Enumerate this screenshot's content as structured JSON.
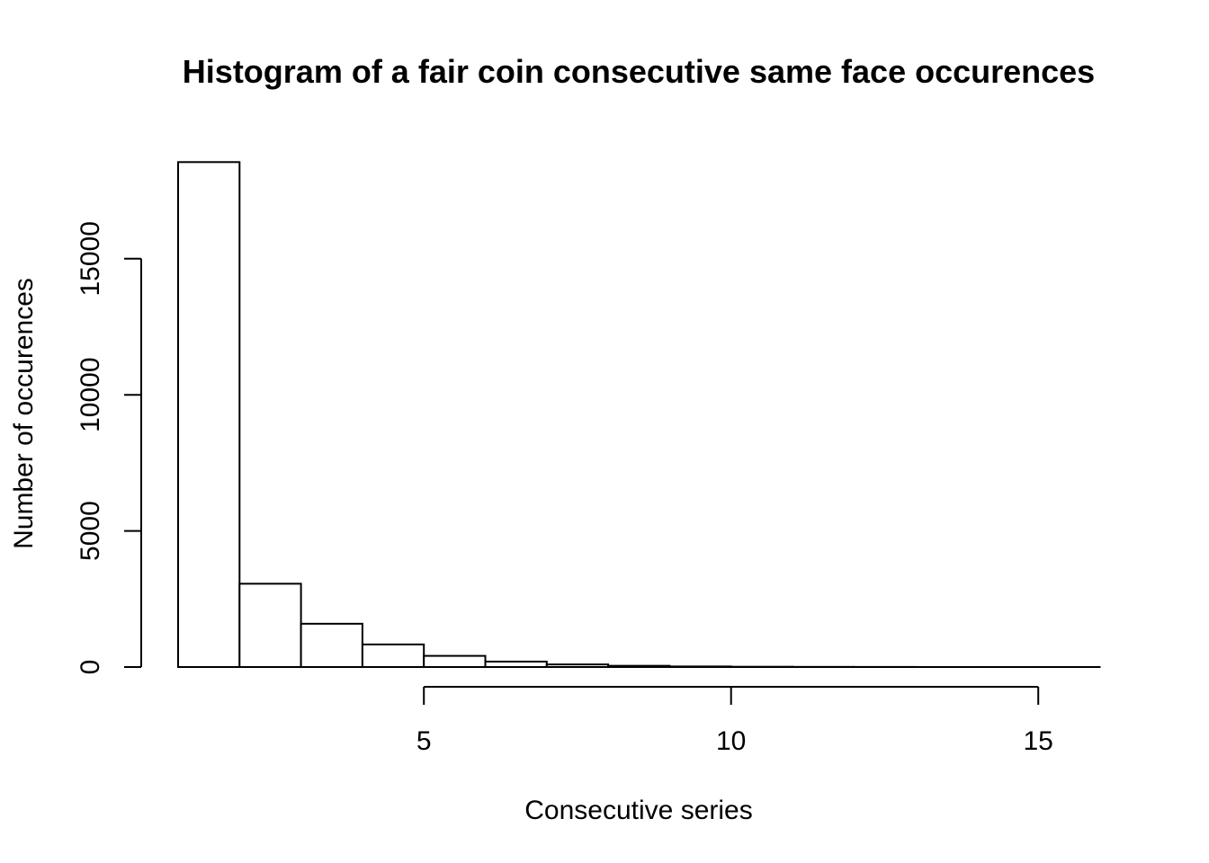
{
  "chart_data": {
    "type": "bar",
    "title": "Histogram of a fair coin consecutive same face occurences",
    "xlabel": "Consecutive series",
    "ylabel": "Number of occurences",
    "bins": [
      {
        "start": 1,
        "end": 2,
        "count": 18550
      },
      {
        "start": 2,
        "end": 3,
        "count": 3060
      },
      {
        "start": 3,
        "end": 4,
        "count": 1590
      },
      {
        "start": 4,
        "end": 5,
        "count": 830
      },
      {
        "start": 5,
        "end": 6,
        "count": 410
      },
      {
        "start": 6,
        "end": 7,
        "count": 200
      },
      {
        "start": 7,
        "end": 8,
        "count": 95
      },
      {
        "start": 8,
        "end": 9,
        "count": 45
      },
      {
        "start": 9,
        "end": 10,
        "count": 20
      },
      {
        "start": 10,
        "end": 11,
        "count": 10
      },
      {
        "start": 11,
        "end": 12,
        "count": 5
      },
      {
        "start": 12,
        "end": 13,
        "count": 3
      },
      {
        "start": 13,
        "end": 14,
        "count": 1
      },
      {
        "start": 14,
        "end": 15,
        "count": 1
      },
      {
        "start": 15,
        "end": 16,
        "count": 1
      }
    ],
    "xlim": [
      1,
      16
    ],
    "ylim": [
      0,
      18550
    ],
    "xticks": [
      5,
      10,
      15
    ],
    "yticks": [
      0,
      5000,
      10000,
      15000
    ],
    "xtick_labels": [
      "5",
      "10",
      "15"
    ],
    "ytick_labels": [
      "0",
      "5000",
      "10000",
      "15000"
    ],
    "grid": false,
    "legend": "none"
  }
}
